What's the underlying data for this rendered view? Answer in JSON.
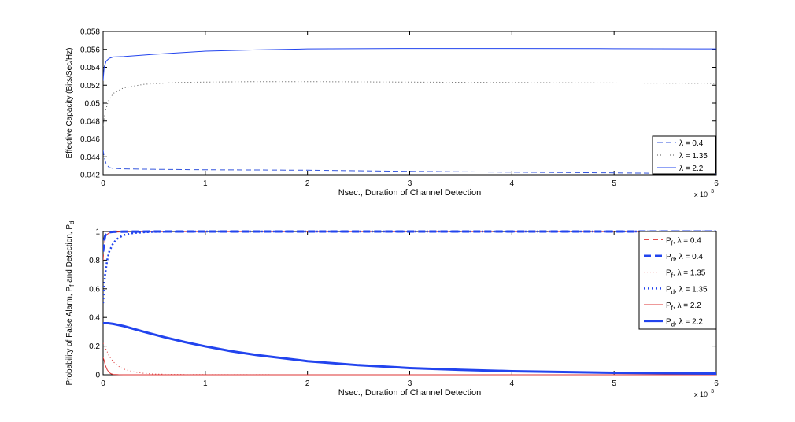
{
  "chart_data": [
    {
      "type": "line",
      "title": "",
      "xlabel": "Nsec., Duration of Channel Detection",
      "ylabel": "Effective Capacity (Bits/Sec/Hz)",
      "x_multiplier_label": "x 10",
      "x_multiplier_exp": "−3",
      "xlim": [
        0,
        6
      ],
      "ylim": [
        0.042,
        0.058
      ],
      "xticks": [
        "0",
        "1",
        "2",
        "3",
        "4",
        "5",
        "6"
      ],
      "yticks": [
        "0.042",
        "0.044",
        "0.046",
        "0.048",
        "0.05",
        "0.052",
        "0.054",
        "0.056",
        "0.058"
      ],
      "grid": false,
      "legend_position": "bottom-right",
      "series": [
        {
          "name": "λ = 0.4",
          "color": "#3355dd",
          "style": "dashed",
          "x": [
            0.0,
            0.01,
            0.03,
            0.06,
            0.1,
            0.2,
            0.5,
            1,
            2,
            3,
            4,
            5,
            6
          ],
          "y": [
            0.0448,
            0.044,
            0.0432,
            0.0428,
            0.0427,
            0.04265,
            0.0426,
            0.04255,
            0.0425,
            0.04237,
            0.04228,
            0.0422,
            0.0421
          ]
        },
        {
          "name": "λ = 1.35",
          "color": "#555555",
          "style": "dotted",
          "x": [
            0.0,
            0.02,
            0.05,
            0.1,
            0.2,
            0.4,
            0.7,
            1,
            1.5,
            2,
            3,
            4,
            5,
            6
          ],
          "y": [
            0.0475,
            0.049,
            0.0502,
            0.0511,
            0.0517,
            0.0521,
            0.0523,
            0.05235,
            0.0524,
            0.0524,
            0.05235,
            0.0523,
            0.05225,
            0.0522
          ]
        },
        {
          "name": "λ = 2.2",
          "color": "#2244ee",
          "style": "solid",
          "x": [
            0.0,
            0.01,
            0.03,
            0.06,
            0.1,
            0.2,
            0.5,
            1,
            1.5,
            2,
            3,
            4,
            5,
            6
          ],
          "y": [
            0.0525,
            0.054,
            0.0547,
            0.055,
            0.05515,
            0.0552,
            0.05545,
            0.0558,
            0.05595,
            0.05605,
            0.0561,
            0.0561,
            0.05608,
            0.05605
          ]
        }
      ]
    },
    {
      "type": "line",
      "title": "",
      "xlabel": "Nsec., Duration of Channel Detection",
      "ylabel_parts": [
        "Probability of False Alarm, P",
        "f",
        " and Detection, P",
        "d"
      ],
      "x_multiplier_label": "x 10",
      "x_multiplier_exp": "−3",
      "xlim": [
        0,
        6
      ],
      "ylim": [
        0,
        1
      ],
      "xticks": [
        "0",
        "1",
        "2",
        "3",
        "4",
        "5",
        "6"
      ],
      "yticks": [
        "0",
        "0.2",
        "0.4",
        "0.6",
        "0.8",
        "1"
      ],
      "grid": false,
      "legend_position": "top-right",
      "series": [
        {
          "name_parts": [
            "P",
            "f",
            ", λ = 0.4"
          ],
          "color": "#dd3333",
          "style": "dashed",
          "width": 1,
          "x": [
            0.0,
            0.01,
            0.02,
            0.04,
            0.06,
            0.1,
            0.2,
            0.5,
            1,
            2,
            3,
            4,
            5,
            6
          ],
          "y": [
            0.8,
            0.9,
            0.95,
            0.98,
            0.99,
            0.995,
            0.998,
            0.999,
            0.999,
            0.999,
            0.999,
            0.999,
            0.999,
            0.999
          ]
        },
        {
          "name_parts": [
            "P",
            "d",
            ", λ = 0.4"
          ],
          "color": "#2244ee",
          "style": "dashed",
          "width": 3,
          "x": [
            0.0,
            0.01,
            0.02,
            0.04,
            0.06,
            0.1,
            0.2,
            0.5,
            1,
            2,
            3,
            4,
            5,
            6
          ],
          "y": [
            0.86,
            0.93,
            0.97,
            0.99,
            0.995,
            0.998,
            0.999,
            1.0,
            1.0,
            1.0,
            1.0,
            1.0,
            1.0,
            1.0
          ]
        },
        {
          "name_parts": [
            "P",
            "f",
            ", λ = 1.35"
          ],
          "color": "#dd3333",
          "style": "dotted",
          "width": 1,
          "x": [
            0.0,
            0.01,
            0.02,
            0.04,
            0.06,
            0.1,
            0.15,
            0.2,
            0.3,
            0.4,
            0.5,
            0.7,
            1,
            2,
            3,
            4,
            5,
            6
          ],
          "y": [
            0.22,
            0.21,
            0.19,
            0.16,
            0.13,
            0.09,
            0.06,
            0.04,
            0.02,
            0.01,
            0.005,
            0.002,
            0.001,
            0.0,
            0.0,
            0.0,
            0.0,
            0.0
          ]
        },
        {
          "name_parts": [
            "P",
            "d",
            ", λ = 1.35"
          ],
          "color": "#2244ee",
          "style": "dotted",
          "width": 2.5,
          "x": [
            0.0,
            0.01,
            0.02,
            0.04,
            0.06,
            0.1,
            0.15,
            0.2,
            0.3,
            0.4,
            0.5,
            0.7,
            1,
            2,
            3,
            4,
            5,
            6
          ],
          "y": [
            0.5,
            0.62,
            0.7,
            0.8,
            0.86,
            0.92,
            0.955,
            0.975,
            0.99,
            0.995,
            0.998,
            0.999,
            1.0,
            1.0,
            1.0,
            1.0,
            1.0,
            1.0
          ]
        },
        {
          "name_parts": [
            "P",
            "f",
            ", λ = 2.2"
          ],
          "color": "#dd3333",
          "style": "solid",
          "width": 1,
          "x": [
            0.0,
            0.01,
            0.02,
            0.04,
            0.06,
            0.08,
            0.1,
            0.15,
            0.2,
            0.5,
            1,
            2,
            3,
            4,
            5,
            6
          ],
          "y": [
            0.12,
            0.1,
            0.07,
            0.035,
            0.015,
            0.006,
            0.002,
            0.0005,
            0.0,
            0.0,
            0.0,
            0.0,
            0.0,
            0.0,
            0.0,
            0.0
          ]
        },
        {
          "name_parts": [
            "P",
            "d",
            ", λ = 2.2"
          ],
          "color": "#2244ee",
          "style": "solid",
          "width": 3,
          "x": [
            0.0,
            0.05,
            0.1,
            0.2,
            0.4,
            0.6,
            0.8,
            1,
            1.25,
            1.5,
            2,
            2.5,
            3,
            3.5,
            4,
            4.5,
            5,
            5.5,
            6
          ],
          "y": [
            0.36,
            0.36,
            0.355,
            0.34,
            0.3,
            0.262,
            0.228,
            0.198,
            0.165,
            0.138,
            0.095,
            0.067,
            0.047,
            0.034,
            0.025,
            0.019,
            0.014,
            0.011,
            0.008
          ]
        }
      ]
    }
  ]
}
